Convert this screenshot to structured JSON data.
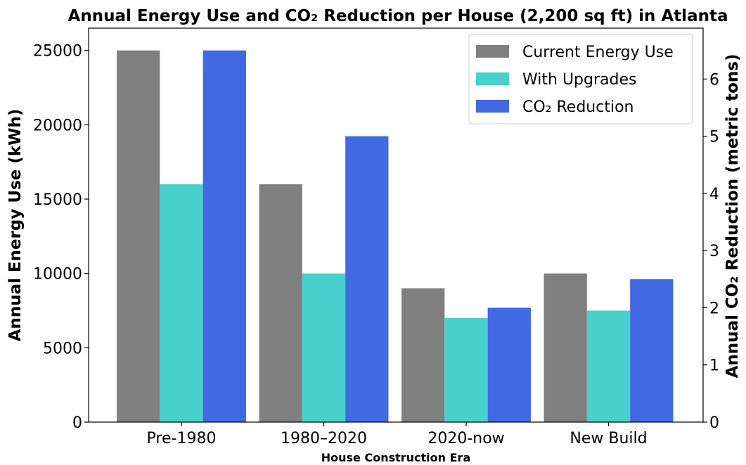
{
  "chart_data": {
    "type": "bar",
    "title": "Annual Energy Use and CO₂ Reduction per House (2,200 sq ft) in Atlanta",
    "xlabel": "House Construction Era",
    "ylabel": "Annual Energy Use (kWh)",
    "ylabel_right": "Annual CO₂ Reduction (metric tons)",
    "categories": [
      "Pre-1980",
      "1980–2020",
      "2020-now",
      "New Build"
    ],
    "ylim": [
      0,
      26500
    ],
    "ylim_right": [
      0,
      6.89
    ],
    "yticks": [
      0,
      5000,
      10000,
      15000,
      20000,
      25000
    ],
    "yticks_right": [
      0,
      1,
      2,
      3,
      4,
      5,
      6
    ],
    "grid": false,
    "legend_position": "top-right",
    "series": [
      {
        "name": "Current Energy Use",
        "axis": "left",
        "color": "#808080",
        "values": [
          25000,
          16000,
          9000,
          10000
        ]
      },
      {
        "name": "With Upgrades",
        "axis": "left",
        "color": "#48D1CC",
        "values": [
          16000,
          10000,
          7000,
          7500
        ]
      },
      {
        "name": "CO₂ Reduction",
        "axis": "right",
        "color": "#4169E1",
        "values": [
          6.5,
          5.0,
          2.0,
          2.5
        ]
      }
    ]
  }
}
